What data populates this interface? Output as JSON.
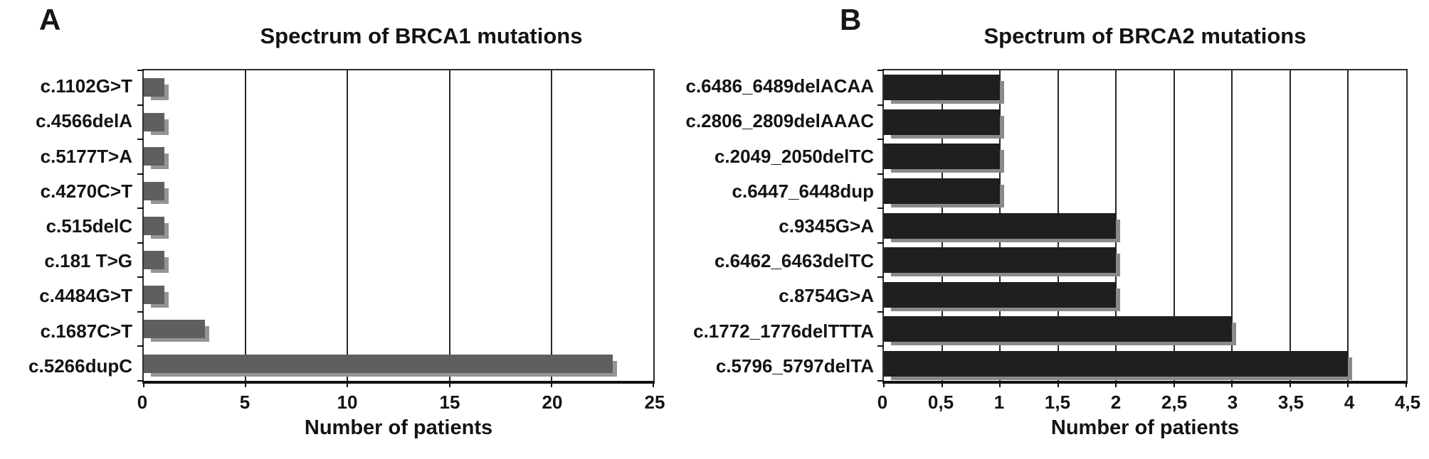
{
  "figure": {
    "background_color": "#ffffff",
    "text_color": "#131313",
    "axis_line_color": "#111111",
    "gridline_color": "#272727"
  },
  "chart_data": [
    {
      "type": "bar",
      "orientation": "horizontal",
      "panel_label": "A",
      "title": "Spectrum of BRCA1 mutations",
      "xlabel": "Number of patients",
      "categories": [
        "c.1102G>T",
        "c.4566delA",
        "c.5177T>A",
        "c.4270C>T",
        "c.515delC",
        "c.181 T>G",
        "c.4484G>T",
        "c.1687C>T",
        "c.5266dupC"
      ],
      "values": [
        1,
        1,
        1,
        1,
        1,
        1,
        1,
        3,
        23
      ],
      "xlim": [
        0,
        25
      ],
      "xticks": [
        "0",
        "5",
        "10",
        "15",
        "20",
        "25"
      ],
      "grid": "vertical",
      "legend": "none",
      "bar_color": "#5f5f5f",
      "bar_shadow_color": "#949494"
    },
    {
      "type": "bar",
      "orientation": "horizontal",
      "panel_label": "B",
      "title": "Spectrum of BRCA2 mutations",
      "xlabel": "Number of patients",
      "categories": [
        "c.6486_6489delACAA",
        "c.2806_2809delAAAC",
        "c.2049_2050delTC",
        "c.6447_6448dup",
        "c.9345G>A",
        "c.6462_6463delTC",
        "c.8754G>A",
        "c.1772_1776delTTTA",
        "c.5796_5797delTA"
      ],
      "values": [
        1,
        1,
        1,
        1,
        2,
        2,
        2,
        3,
        4
      ],
      "xlim": [
        0,
        4.5
      ],
      "xticks": [
        "0",
        "0,5",
        "1",
        "1,5",
        "2",
        "2,5",
        "3",
        "3,5",
        "4",
        "4,5"
      ],
      "grid": "vertical",
      "legend": "none",
      "bar_color": "#1f1f1f",
      "bar_shadow_color": "#8a8a8a"
    }
  ]
}
